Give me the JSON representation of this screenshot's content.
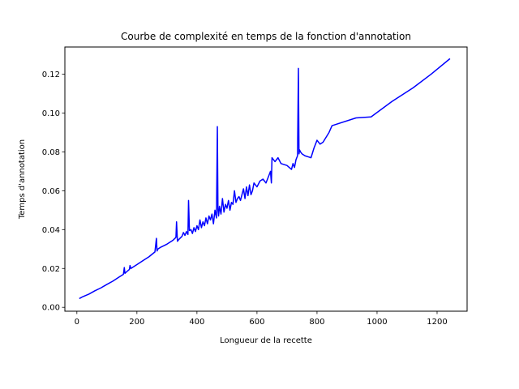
{
  "chart_data": {
    "type": "line",
    "title": "Courbe de complexité en temps de la fonction d'annotation",
    "xlabel": "Longueur de la recette",
    "ylabel": "Temps d'annotation",
    "xlim": [
      -40,
      1300
    ],
    "ylim": [
      -0.002,
      0.134
    ],
    "xticks": [
      0,
      200,
      400,
      600,
      800,
      1000,
      1200
    ],
    "yticks": [
      0.0,
      0.02,
      0.04,
      0.06,
      0.08,
      0.1,
      0.12
    ],
    "xtick_labels": [
      "0",
      "200",
      "400",
      "600",
      "800",
      "1000",
      "1200"
    ],
    "ytick_labels": [
      "0.00",
      "0.02",
      "0.04",
      "0.06",
      "0.08",
      "0.10",
      "0.12"
    ],
    "grid": false,
    "legend": "none",
    "series": [
      {
        "color": "#0000ff",
        "x": [
          8,
          20,
          40,
          60,
          80,
          100,
          120,
          140,
          155,
          158,
          160,
          165,
          175,
          177,
          180,
          200,
          220,
          240,
          260,
          265,
          267,
          270,
          280,
          300,
          320,
          330,
          332,
          335,
          340,
          350,
          355,
          360,
          365,
          370,
          372,
          375,
          380,
          385,
          390,
          395,
          400,
          405,
          410,
          415,
          420,
          425,
          430,
          435,
          440,
          445,
          450,
          455,
          460,
          465,
          468,
          470,
          472,
          475,
          480,
          485,
          490,
          495,
          500,
          505,
          510,
          515,
          520,
          525,
          530,
          535,
          540,
          545,
          550,
          555,
          560,
          565,
          570,
          575,
          580,
          585,
          590,
          600,
          610,
          620,
          630,
          640,
          645,
          648,
          650,
          660,
          670,
          680,
          700,
          715,
          720,
          725,
          730,
          735,
          738,
          740,
          742,
          745,
          750,
          760,
          780,
          790,
          800,
          810,
          820,
          840,
          850,
          930,
          980,
          1050,
          1120,
          1180,
          1243
        ],
        "y": [
          0.0045,
          0.0055,
          0.0068,
          0.0085,
          0.01,
          0.0118,
          0.0135,
          0.0155,
          0.017,
          0.0205,
          0.0175,
          0.0182,
          0.0195,
          0.0215,
          0.02,
          0.022,
          0.024,
          0.026,
          0.0285,
          0.0355,
          0.029,
          0.03,
          0.031,
          0.0325,
          0.0345,
          0.036,
          0.044,
          0.034,
          0.035,
          0.0365,
          0.0385,
          0.037,
          0.039,
          0.0375,
          0.055,
          0.0395,
          0.04,
          0.038,
          0.041,
          0.039,
          0.042,
          0.04,
          0.045,
          0.041,
          0.044,
          0.042,
          0.046,
          0.043,
          0.047,
          0.045,
          0.048,
          0.043,
          0.05,
          0.046,
          0.093,
          0.05,
          0.047,
          0.052,
          0.048,
          0.056,
          0.049,
          0.053,
          0.051,
          0.055,
          0.05,
          0.054,
          0.053,
          0.06,
          0.054,
          0.056,
          0.057,
          0.055,
          0.058,
          0.061,
          0.056,
          0.062,
          0.0575,
          0.063,
          0.058,
          0.06,
          0.064,
          0.062,
          0.065,
          0.066,
          0.064,
          0.068,
          0.07,
          0.064,
          0.077,
          0.075,
          0.077,
          0.074,
          0.073,
          0.071,
          0.074,
          0.072,
          0.076,
          0.078,
          0.123,
          0.079,
          0.081,
          0.08,
          0.079,
          0.078,
          0.077,
          0.082,
          0.086,
          0.084,
          0.085,
          0.09,
          0.0935,
          0.0975,
          0.098,
          0.106,
          0.113,
          0.12,
          0.128
        ]
      }
    ]
  }
}
